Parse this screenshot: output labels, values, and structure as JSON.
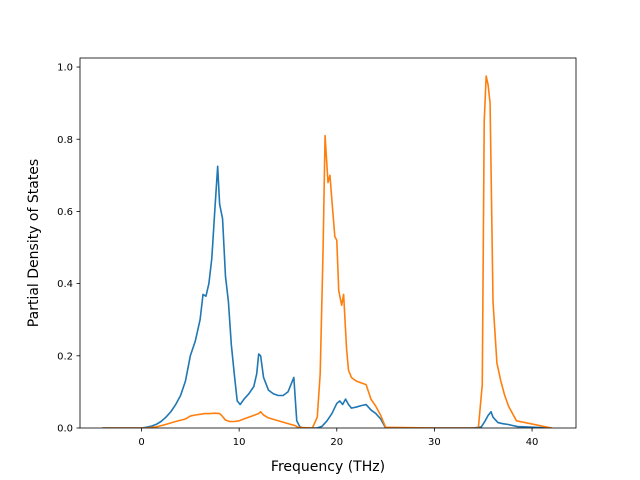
{
  "chart_data": {
    "type": "line",
    "xlabel": "Frequency (THz)",
    "ylabel": "Partial Density of States",
    "xlim": [
      -6.3,
      44.5
    ],
    "ylim": [
      0,
      1.025
    ],
    "xticks": [
      0,
      10,
      20,
      30,
      40
    ],
    "yticks": [
      0.0,
      0.2,
      0.4,
      0.6,
      0.8,
      1.0
    ],
    "xtick_labels": [
      "0",
      "10",
      "20",
      "30",
      "40"
    ],
    "ytick_labels": [
      "0.0",
      "0.2",
      "0.4",
      "0.6",
      "0.8",
      "1.0"
    ],
    "grid": false,
    "series": [
      {
        "color": "#1f77b4",
        "x": [
          -4,
          0,
          0.5,
          1,
          1.5,
          2,
          2.5,
          3,
          3.5,
          4,
          4.5,
          5,
          5.5,
          6,
          6.3,
          6.6,
          6.9,
          7.2,
          7.5,
          7.8,
          8.0,
          8.3,
          8.6,
          8.9,
          9.2,
          9.5,
          9.8,
          10.1,
          10.5,
          11,
          11.5,
          11.8,
          12,
          12.2,
          12.5,
          13,
          13.5,
          14,
          14.5,
          15,
          15.3,
          15.6,
          15.9,
          16.2,
          16.5,
          17,
          18,
          18.5,
          19,
          19.5,
          20,
          20.3,
          20.6,
          20.9,
          21.2,
          21.5,
          22,
          22.5,
          23,
          23.5,
          24,
          24.5,
          24.8,
          25,
          30,
          34,
          34.8,
          35.2,
          35.5,
          35.8,
          36,
          36.5,
          37,
          37.5,
          38,
          38.5,
          42
        ],
        "y": [
          0,
          0,
          0.002,
          0.005,
          0.01,
          0.018,
          0.03,
          0.045,
          0.065,
          0.09,
          0.13,
          0.2,
          0.24,
          0.3,
          0.37,
          0.365,
          0.4,
          0.47,
          0.6,
          0.725,
          0.62,
          0.58,
          0.42,
          0.35,
          0.23,
          0.15,
          0.075,
          0.065,
          0.08,
          0.095,
          0.115,
          0.15,
          0.205,
          0.2,
          0.14,
          0.105,
          0.095,
          0.09,
          0.09,
          0.1,
          0.12,
          0.14,
          0.02,
          0.004,
          0,
          0,
          0,
          0.005,
          0.02,
          0.04,
          0.068,
          0.075,
          0.065,
          0.08,
          0.065,
          0.055,
          0.058,
          0.062,
          0.065,
          0.05,
          0.04,
          0.025,
          0.01,
          0,
          0,
          0,
          0.003,
          0.02,
          0.035,
          0.045,
          0.03,
          0.015,
          0.012,
          0.01,
          0.007,
          0.004,
          0
        ]
      },
      {
        "color": "#ff7f0e",
        "x": [
          -4,
          0.5,
          1.5,
          2.5,
          3.5,
          4.5,
          5,
          5.5,
          6,
          6.5,
          7,
          7.5,
          8,
          8.3,
          8.6,
          9,
          9.5,
          10,
          11,
          11.5,
          12,
          12.2,
          12.5,
          13,
          14,
          15,
          15.8,
          16,
          17.5,
          18,
          18.3,
          18.6,
          18.8,
          19.1,
          19.3,
          19.5,
          19.8,
          20,
          20.2,
          20.5,
          20.7,
          21,
          21.2,
          21.5,
          22,
          23,
          23.5,
          24,
          24.5,
          24.8,
          25,
          30,
          34.5,
          34.9,
          35.1,
          35.3,
          35.5,
          35.7,
          36,
          36.4,
          36.8,
          37.2,
          37.6,
          38.0,
          38.4,
          42
        ],
        "y": [
          0,
          0,
          0.003,
          0.01,
          0.018,
          0.025,
          0.033,
          0.036,
          0.038,
          0.04,
          0.04,
          0.041,
          0.04,
          0.032,
          0.022,
          0.018,
          0.018,
          0.02,
          0.03,
          0.035,
          0.04,
          0.045,
          0.036,
          0.028,
          0.02,
          0.012,
          0.006,
          0.002,
          0,
          0.03,
          0.15,
          0.5,
          0.81,
          0.68,
          0.7,
          0.63,
          0.53,
          0.52,
          0.38,
          0.34,
          0.37,
          0.22,
          0.16,
          0.14,
          0.13,
          0.12,
          0.08,
          0.06,
          0.035,
          0.015,
          0.002,
          0,
          0,
          0.12,
          0.85,
          0.975,
          0.95,
          0.9,
          0.35,
          0.18,
          0.13,
          0.09,
          0.06,
          0.04,
          0.02,
          0
        ]
      }
    ]
  }
}
